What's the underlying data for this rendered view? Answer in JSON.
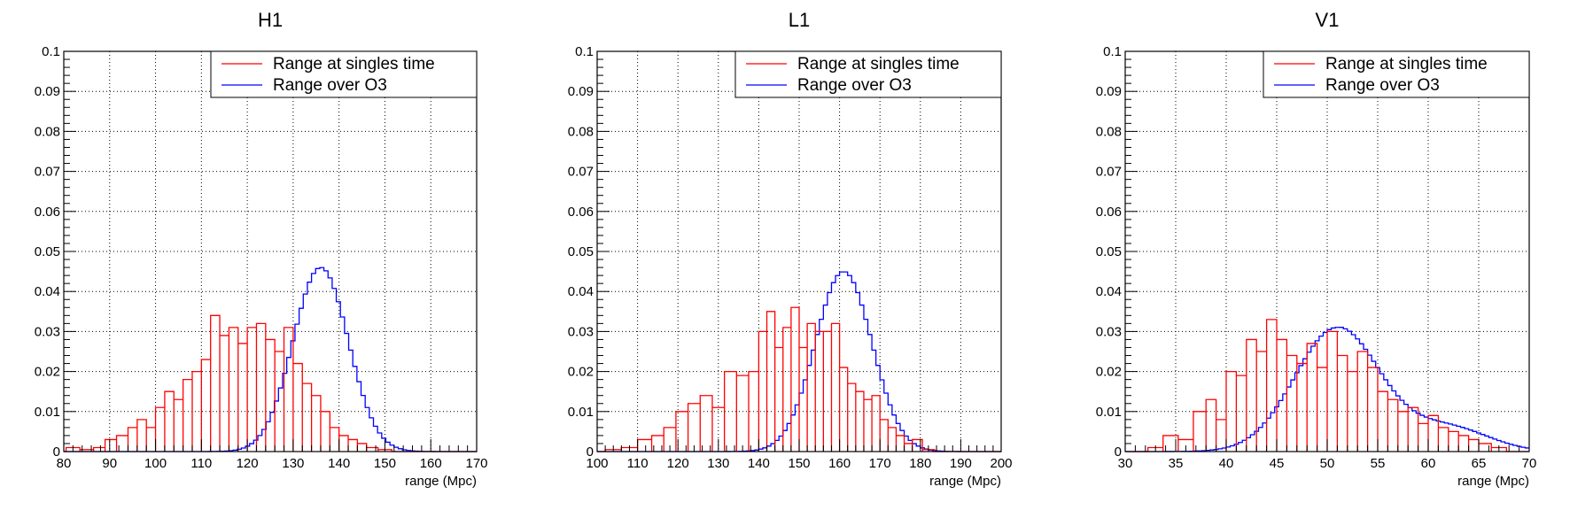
{
  "chart_data": [
    {
      "type": "histogram",
      "title": "H1",
      "xlabel": "range (Mpc)",
      "ylabel": "",
      "xlim": [
        80,
        170
      ],
      "ylim": [
        0,
        0.1
      ],
      "xticks": [
        "80",
        "90",
        "100",
        "110",
        "120",
        "130",
        "140",
        "150",
        "160",
        "170"
      ],
      "yticks": [
        "0",
        "0.01",
        "0.02",
        "0.03",
        "0.04",
        "0.05",
        "0.06",
        "0.07",
        "0.08",
        "0.09",
        "0.1"
      ],
      "grid": true,
      "legend_position": "top-right",
      "series": [
        {
          "name": "Range at singles time",
          "color": "#ff0000",
          "x": [
            [
              82,
              0.001
            ],
            [
              85,
              0.0005
            ],
            [
              88,
              0.001
            ],
            [
              90,
              0.003
            ],
            [
              93,
              0.004
            ],
            [
              95,
              0.006
            ],
            [
              97,
              0.008
            ],
            [
              99,
              0.006
            ],
            [
              101,
              0.011
            ],
            [
              103,
              0.015
            ],
            [
              105,
              0.013
            ],
            [
              107,
              0.018
            ],
            [
              109,
              0.02
            ],
            [
              111,
              0.023
            ],
            [
              113,
              0.034
            ],
            [
              115,
              0.029
            ],
            [
              117,
              0.031
            ],
            [
              119,
              0.027
            ],
            [
              121,
              0.031
            ],
            [
              123,
              0.032
            ],
            [
              125,
              0.028
            ],
            [
              127,
              0.025
            ],
            [
              129,
              0.031
            ],
            [
              131,
              0.022
            ],
            [
              133,
              0.017
            ],
            [
              135,
              0.014
            ],
            [
              137,
              0.01
            ],
            [
              139,
              0.006
            ],
            [
              141,
              0.004
            ],
            [
              143,
              0.003
            ],
            [
              145,
              0.002
            ],
            [
              147,
              0.001
            ],
            [
              150,
              0.0005
            ]
          ]
        },
        {
          "name": "Range over O3",
          "color": "#0000ff",
          "peak_x": 136,
          "peak_y": 0.046,
          "sigma": 6,
          "span": [
            100,
            162
          ]
        }
      ]
    },
    {
      "type": "histogram",
      "title": "L1",
      "xlabel": "range (Mpc)",
      "ylabel": "",
      "xlim": [
        100,
        200
      ],
      "ylim": [
        0,
        0.1
      ],
      "xticks": [
        "100",
        "110",
        "120",
        "130",
        "140",
        "150",
        "160",
        "170",
        "180",
        "190",
        "200"
      ],
      "yticks": [
        "0",
        "0.01",
        "0.02",
        "0.03",
        "0.04",
        "0.05",
        "0.06",
        "0.07",
        "0.08",
        "0.09",
        "0.1"
      ],
      "grid": true,
      "legend_position": "top-right",
      "series": [
        {
          "name": "Range at singles time",
          "color": "#ff0000",
          "x": [
            [
              104,
              0.0005
            ],
            [
              108,
              0.001
            ],
            [
              112,
              0.003
            ],
            [
              115,
              0.004
            ],
            [
              118,
              0.006
            ],
            [
              121,
              0.01
            ],
            [
              124,
              0.012
            ],
            [
              127,
              0.014
            ],
            [
              130,
              0.011
            ],
            [
              133,
              0.02
            ],
            [
              136,
              0.019
            ],
            [
              139,
              0.02
            ],
            [
              141,
              0.03
            ],
            [
              143,
              0.035
            ],
            [
              145,
              0.026
            ],
            [
              147,
              0.031
            ],
            [
              149,
              0.036
            ],
            [
              151,
              0.026
            ],
            [
              153,
              0.032
            ],
            [
              155,
              0.03
            ],
            [
              157,
              0.03
            ],
            [
              159,
              0.032
            ],
            [
              161,
              0.021
            ],
            [
              163,
              0.017
            ],
            [
              165,
              0.015
            ],
            [
              167,
              0.013
            ],
            [
              169,
              0.014
            ],
            [
              171,
              0.008
            ],
            [
              173,
              0.006
            ],
            [
              175,
              0.004
            ],
            [
              177,
              0.002
            ],
            [
              179,
              0.003
            ],
            [
              182,
              0.0005
            ]
          ]
        },
        {
          "name": "Range over O3",
          "color": "#0000ff",
          "peak_x": 161,
          "peak_y": 0.045,
          "sigma": 7,
          "span": [
            120,
            192
          ]
        }
      ]
    },
    {
      "type": "histogram",
      "title": "V1",
      "xlabel": "range (Mpc)",
      "ylabel": "",
      "xlim": [
        30,
        70
      ],
      "ylim": [
        0,
        0.1
      ],
      "xticks": [
        "30",
        "35",
        "40",
        "45",
        "50",
        "55",
        "60",
        "65",
        "70"
      ],
      "yticks": [
        "0",
        "0.01",
        "0.02",
        "0.03",
        "0.04",
        "0.05",
        "0.06",
        "0.07",
        "0.08",
        "0.09",
        "0.1"
      ],
      "grid": true,
      "legend_position": "top-right",
      "series": [
        {
          "name": "Range at singles time",
          "color": "#ff0000",
          "x": [
            [
              33,
              0.001
            ],
            [
              34.5,
              0.004
            ],
            [
              36,
              0.003
            ],
            [
              37.5,
              0.01
            ],
            [
              38.5,
              0.013
            ],
            [
              39.5,
              0.008
            ],
            [
              40.5,
              0.02
            ],
            [
              41.5,
              0.019
            ],
            [
              42.5,
              0.028
            ],
            [
              43.5,
              0.025
            ],
            [
              44.5,
              0.033
            ],
            [
              45.5,
              0.028
            ],
            [
              46.5,
              0.024
            ],
            [
              47.5,
              0.022
            ],
            [
              48.5,
              0.027
            ],
            [
              49.5,
              0.021
            ],
            [
              50.5,
              0.03
            ],
            [
              51.5,
              0.024
            ],
            [
              52.5,
              0.02
            ],
            [
              53.5,
              0.025
            ],
            [
              54.5,
              0.021
            ],
            [
              55.5,
              0.015
            ],
            [
              56.5,
              0.013
            ],
            [
              57.5,
              0.01
            ],
            [
              58.5,
              0.011
            ],
            [
              59.5,
              0.007
            ],
            [
              60.5,
              0.009
            ],
            [
              61.5,
              0.006
            ],
            [
              62.5,
              0.005
            ],
            [
              63.5,
              0.004
            ],
            [
              64.5,
              0.003
            ],
            [
              65.5,
              0.002
            ],
            [
              67,
              0.001
            ]
          ]
        },
        {
          "name": "Range over O3",
          "color": "#0000ff",
          "peak_x": 51,
          "peak_y": 0.031,
          "sigma": 4.2,
          "span": [
            33,
            70
          ],
          "shoulder_x": 62,
          "shoulder_y": 0.006,
          "shoulder_sigma": 4
        }
      ]
    }
  ]
}
